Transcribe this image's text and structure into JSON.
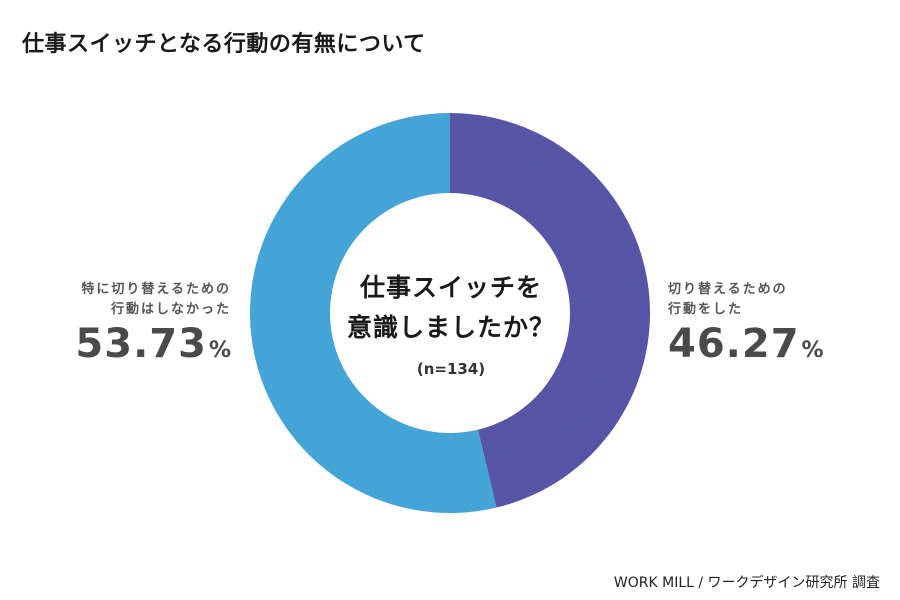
{
  "title": "仕事スイッチとなる行動の有無について",
  "center": {
    "question_line1": "仕事スイッチを",
    "question_line2": "意識しましたか？",
    "sample": "(n=134)"
  },
  "footer": {
    "credit": "WORK MILL / ワークデザイン研究所 調査"
  },
  "chart_data": {
    "type": "pie",
    "variant": "donut",
    "title": "仕事スイッチとなる行動の有無について",
    "center_text": "仕事スイッチを意識しましたか？",
    "sample_size": "(n=134)",
    "unit": "%",
    "slices": [
      {
        "label_line1": "切り替えるための",
        "label_line2": "行動をした",
        "value": 46.27,
        "display": "46.27",
        "color": "#5b5aad"
      },
      {
        "label_line1": "特に切り替えるための",
        "label_line2": "行動はしなかった",
        "value": 53.73,
        "display": "53.73",
        "color": "#4aace0"
      }
    ],
    "start_angle_deg": 0,
    "direction": "clockwise",
    "legend": "none"
  }
}
